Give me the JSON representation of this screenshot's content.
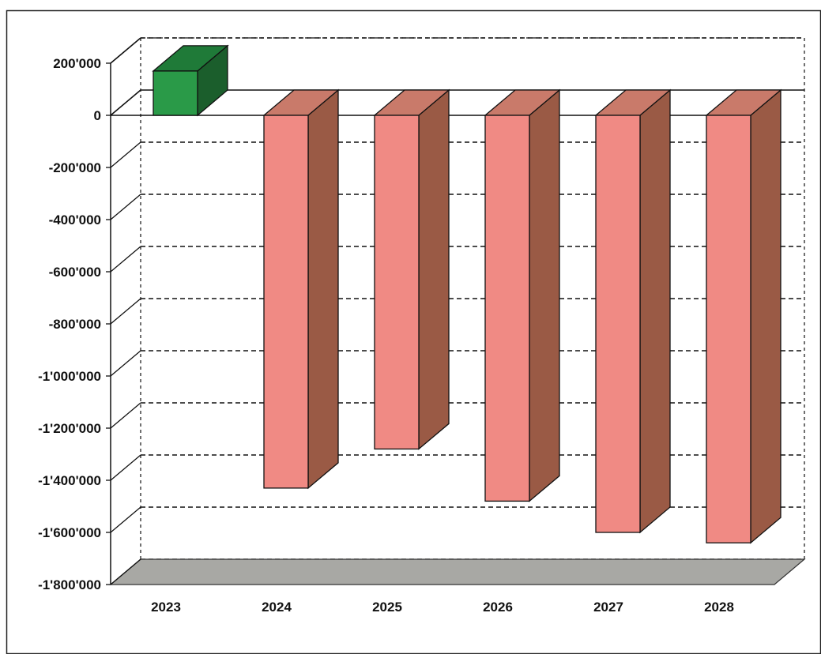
{
  "chart_data": {
    "type": "bar",
    "style": "3d-column",
    "title": "",
    "xlabel": "",
    "ylabel": "",
    "categories": [
      "2023",
      "2024",
      "2025",
      "2026",
      "2027",
      "2028"
    ],
    "series": [
      {
        "values": [
          170000,
          -1430000,
          -1280000,
          -1480000,
          -1600000,
          -1640000
        ]
      }
    ],
    "ylim": [
      -1800000,
      200000
    ],
    "y_ticks": [
      200000,
      0,
      -200000,
      -400000,
      -600000,
      -800000,
      -1000000,
      -1200000,
      -1400000,
      -1600000,
      -1800000
    ],
    "y_tick_labels": [
      "200'000",
      "0",
      "-200'000",
      "-400'000",
      "-600'000",
      "-800'000",
      "-1'000'000",
      "-1'200'000",
      "-1'400'000",
      "-1'600'000",
      "-1'800'000"
    ],
    "grid": "dashed-horizontal",
    "legend": "none",
    "colors": {
      "positive_front": "#2a9a48",
      "positive_top": "#1f7a38",
      "positive_side": "#1b5e2c",
      "negative_front": "#f08a84",
      "negative_top": "#c97a6a",
      "negative_side": "#9a5a45",
      "floor": "#a8a8a4",
      "gridline": "#111111"
    }
  }
}
